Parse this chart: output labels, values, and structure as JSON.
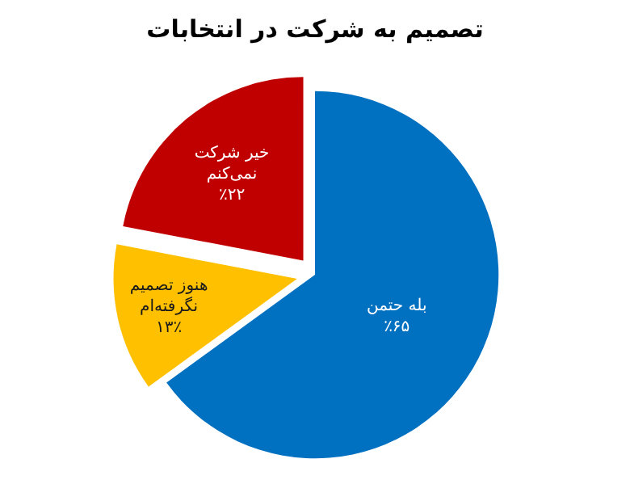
{
  "chart_data": {
    "type": "pie",
    "title": "تصمیم به شرکت در انتخابات",
    "categories": [
      "بله حتمن",
      "هنوز تصمیم نگرفته‌ام",
      "خیر شرکت نمی‌کنم"
    ],
    "values": [
      65,
      13,
      22
    ],
    "value_labels": [
      "٪۶۵",
      "۱۳٪",
      "٪۲۲"
    ],
    "colors": [
      "#0070c0",
      "#ffc000",
      "#c00000"
    ],
    "legend": false
  }
}
